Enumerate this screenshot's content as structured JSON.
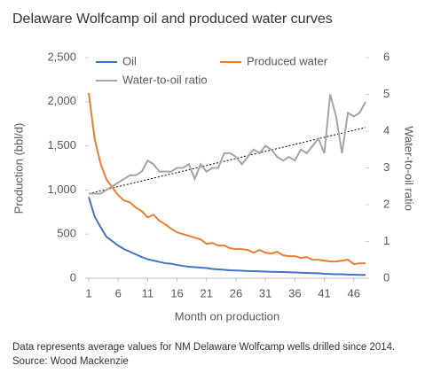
{
  "chart_data": {
    "type": "line",
    "title": "Delaware Wolfcamp oil and produced water curves",
    "x_label": "Month on production",
    "y_label": "Production (bbl/d)",
    "y2_label": "Water-to-oil ratio",
    "x": [
      1,
      2,
      3,
      4,
      5,
      6,
      7,
      8,
      9,
      10,
      11,
      12,
      13,
      14,
      15,
      16,
      17,
      18,
      19,
      20,
      21,
      22,
      23,
      24,
      25,
      26,
      27,
      28,
      29,
      30,
      31,
      32,
      33,
      34,
      35,
      36,
      37,
      38,
      39,
      40,
      41,
      42,
      43,
      44,
      45,
      46,
      47,
      48
    ],
    "xlim": [
      1,
      48
    ],
    "xticks": [
      1,
      6,
      11,
      16,
      21,
      26,
      31,
      36,
      41,
      46
    ],
    "ylim": [
      0,
      2500
    ],
    "yticks": [
      0,
      500,
      {
        "value": 1000,
        "label": "1,000"
      },
      {
        "value": 1500,
        "label": "1,500"
      },
      {
        "value": 2000,
        "label": "2,000"
      },
      {
        "value": 2500,
        "label": "2,500"
      }
    ],
    "y2lim": [
      0,
      6
    ],
    "y2ticks": [
      0,
      1,
      2,
      3,
      4,
      5,
      6
    ],
    "series": [
      {
        "name": "Oil",
        "color": "#4472c4",
        "values": [
          920,
          700,
          580,
          470,
          420,
          370,
          330,
          300,
          270,
          240,
          215,
          200,
          185,
          170,
          165,
          150,
          140,
          130,
          125,
          120,
          115,
          105,
          100,
          95,
          90,
          88,
          85,
          82,
          80,
          78,
          75,
          73,
          72,
          70,
          68,
          65,
          63,
          60,
          58,
          56,
          50,
          48,
          45,
          45,
          42,
          40,
          38,
          38
        ]
      },
      {
        "name": "Produced water",
        "color": "#ed7d31",
        "values": [
          2100,
          1580,
          1300,
          1120,
          1030,
          940,
          880,
          860,
          800,
          760,
          690,
          720,
          650,
          610,
          560,
          520,
          500,
          480,
          460,
          440,
          390,
          400,
          370,
          370,
          340,
          330,
          330,
          320,
          290,
          320,
          290,
          280,
          300,
          260,
          250,
          250,
          230,
          240,
          210,
          210,
          200,
          190,
          190,
          200,
          210,
          160,
          170,
          170
        ]
      },
      {
        "name": "Water-to-oil ratio",
        "color": "#a5a5a5",
        "axis": "y2",
        "values": [
          2.3,
          2.3,
          2.3,
          2.4,
          2.5,
          2.6,
          2.7,
          2.8,
          2.8,
          2.9,
          3.2,
          3.1,
          2.9,
          2.9,
          2.9,
          3.0,
          3.0,
          3.1,
          2.7,
          3.1,
          2.9,
          3.0,
          3.0,
          3.4,
          3.4,
          3.3,
          3.1,
          3.3,
          3.5,
          3.4,
          3.6,
          3.5,
          3.3,
          3.2,
          3.3,
          3.2,
          3.5,
          3.4,
          3.6,
          3.8,
          3.4,
          5.0,
          4.4,
          3.4,
          4.5,
          4.4,
          4.5,
          4.8
        ]
      }
    ],
    "trendline": {
      "axis": "y2",
      "x": [
        1,
        48
      ],
      "values": [
        2.3,
        4.1
      ],
      "color": "#000000",
      "style": "dotted"
    },
    "legend": "top",
    "grid": false,
    "note": "Data represents average values for NM Delaware Wolfcamp wells drilled since 2014. Source: Wood Mackenzie"
  }
}
